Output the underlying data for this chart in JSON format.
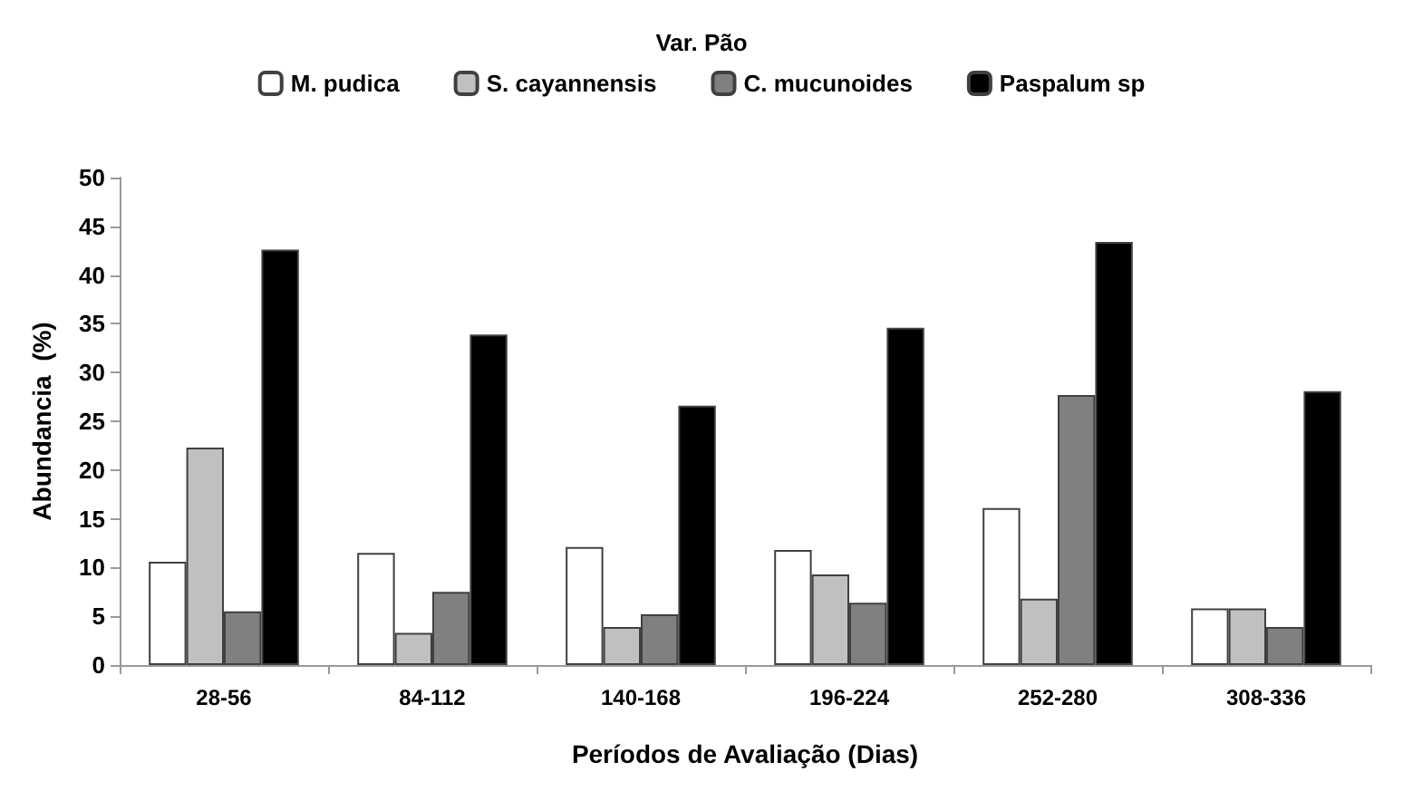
{
  "chart_data": {
    "type": "bar",
    "title": "Var. Pão",
    "xlabel": "Períodos de Avaliação (Dias)",
    "ylabel": "Abundancia  (%)",
    "categories": [
      "28-56",
      "84-112",
      "140-168",
      "196-224",
      "252-280",
      "308-336"
    ],
    "series": [
      {
        "name": "M. pudica",
        "color": "#ffffff",
        "values": [
          10.6,
          11.5,
          12.1,
          11.8,
          16.1,
          5.8
        ]
      },
      {
        "name": "S. cayannensis",
        "color": "#c0c0c0",
        "values": [
          22.3,
          3.3,
          3.9,
          9.3,
          6.8,
          5.8
        ]
      },
      {
        "name": "C. mucunoides",
        "color": "#808080",
        "values": [
          5.5,
          7.5,
          5.2,
          6.4,
          27.7,
          3.9
        ]
      },
      {
        "name": "Paspalum sp",
        "color": "#000000",
        "values": [
          42.6,
          33.9,
          26.6,
          34.6,
          43.4,
          28.1
        ]
      }
    ],
    "ylim": [
      0,
      50
    ],
    "yticks": [
      0,
      5,
      10,
      15,
      20,
      25,
      30,
      35,
      40,
      45,
      50
    ],
    "grid": false,
    "legend": "top"
  }
}
